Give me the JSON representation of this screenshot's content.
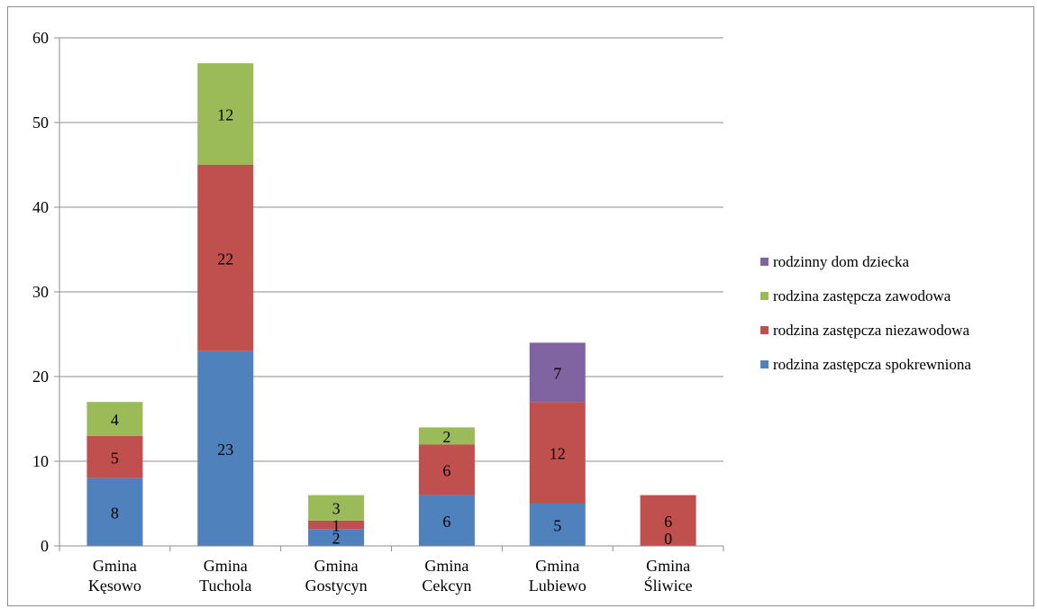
{
  "chart_data": {
    "type": "bar",
    "stacked": true,
    "title": "",
    "xlabel": "",
    "ylabel": "",
    "ylim": [
      0,
      60
    ],
    "yticks": [
      0,
      10,
      20,
      30,
      40,
      50,
      60
    ],
    "grid": true,
    "legend_position": "right",
    "categories": [
      [
        "Gmina",
        "Kęsowo"
      ],
      [
        "Gmina",
        "Tuchola"
      ],
      [
        "Gmina",
        "Gostycyn"
      ],
      [
        "Gmina",
        "Cekcyn"
      ],
      [
        "Gmina",
        "Lubiewo"
      ],
      [
        "Gmina",
        "Śliwice"
      ]
    ],
    "series": [
      {
        "name": "rodzina zastępcza spokrewniona",
        "color": "#4F81BD",
        "values": [
          8,
          23,
          2,
          6,
          5,
          0
        ]
      },
      {
        "name": "rodzina zastępcza niezawodowa",
        "color": "#C0504D",
        "values": [
          5,
          22,
          1,
          6,
          12,
          6
        ]
      },
      {
        "name": "rodzina zastępcza zawodowa",
        "color": "#9BBB59",
        "values": [
          4,
          12,
          3,
          2,
          null,
          null
        ]
      },
      {
        "name": "rodzinny dom dziecka",
        "color": "#8064A2",
        "values": [
          null,
          null,
          null,
          null,
          7,
          null
        ]
      }
    ]
  }
}
